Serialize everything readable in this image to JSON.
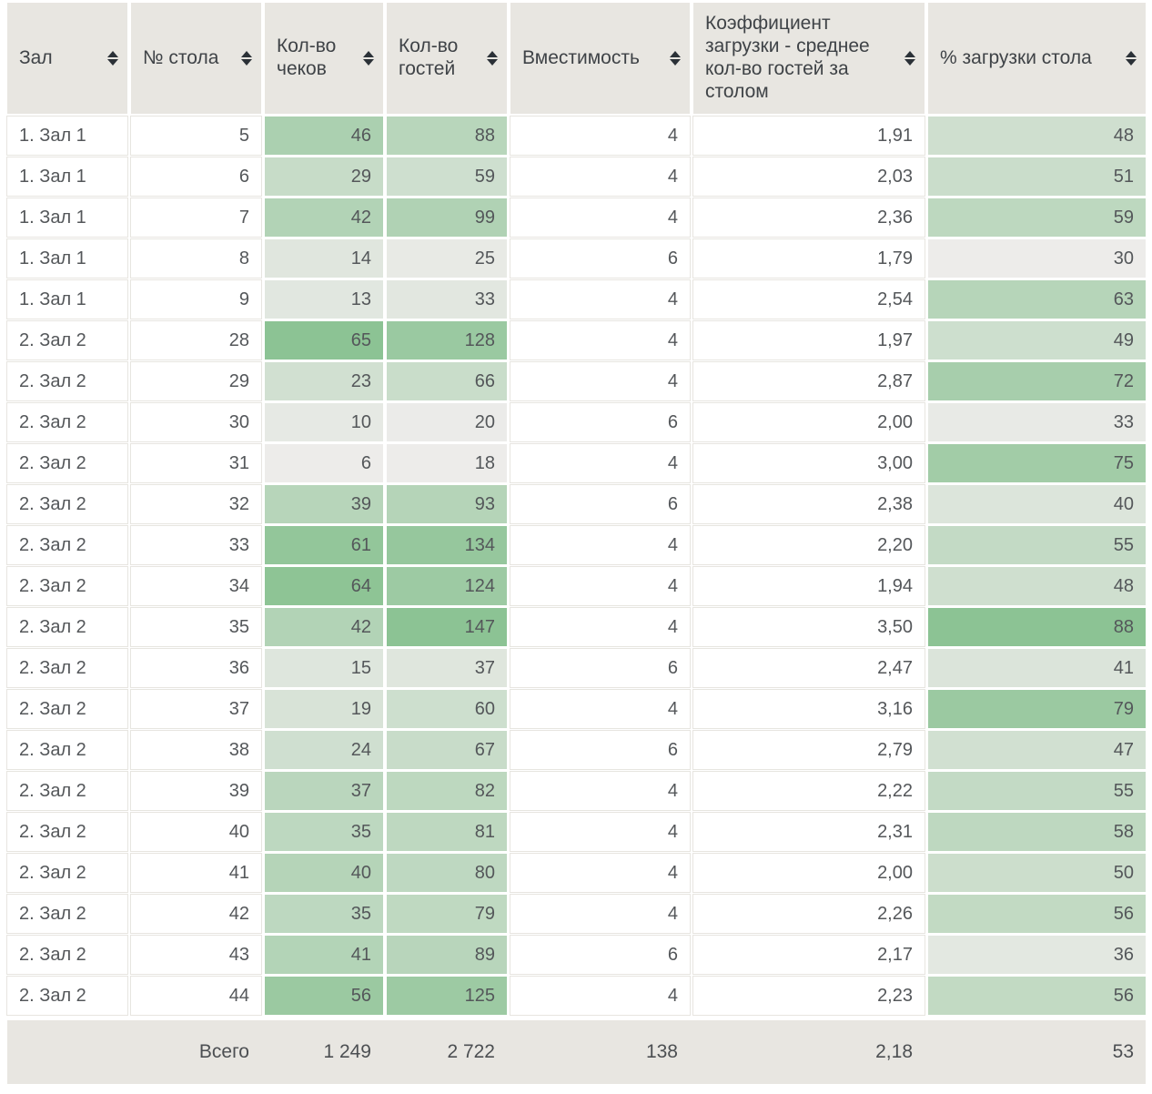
{
  "table": {
    "heatmap": {
      "low": "#edecea",
      "high": "#8cc394"
    },
    "columns": [
      {
        "label": "Зал",
        "align": "left",
        "heatmap": false
      },
      {
        "label": "№ стола",
        "align": "right",
        "heatmap": false
      },
      {
        "label": "Кол-во чеков",
        "align": "right",
        "heatmap": true
      },
      {
        "label": "Кол-во гостей",
        "align": "right",
        "heatmap": true
      },
      {
        "label": "Вместимость",
        "align": "right",
        "heatmap": false
      },
      {
        "label": "Коэффициент загрузки - среднее кол-во гостей за столом",
        "align": "right",
        "heatmap": false
      },
      {
        "label": "% загрузки стола",
        "align": "right",
        "heatmap": true
      }
    ],
    "rows": [
      [
        "1. Зал 1",
        "5",
        "46",
        "88",
        "4",
        "1,91",
        "48"
      ],
      [
        "1. Зал 1",
        "6",
        "29",
        "59",
        "4",
        "2,03",
        "51"
      ],
      [
        "1. Зал 1",
        "7",
        "42",
        "99",
        "4",
        "2,36",
        "59"
      ],
      [
        "1. Зал 1",
        "8",
        "14",
        "25",
        "6",
        "1,79",
        "30"
      ],
      [
        "1. Зал 1",
        "9",
        "13",
        "33",
        "4",
        "2,54",
        "63"
      ],
      [
        "2. Зал 2",
        "28",
        "65",
        "128",
        "4",
        "1,97",
        "49"
      ],
      [
        "2. Зал 2",
        "29",
        "23",
        "66",
        "4",
        "2,87",
        "72"
      ],
      [
        "2. Зал 2",
        "30",
        "10",
        "20",
        "6",
        "2,00",
        "33"
      ],
      [
        "2. Зал 2",
        "31",
        "6",
        "18",
        "4",
        "3,00",
        "75"
      ],
      [
        "2. Зал 2",
        "32",
        "39",
        "93",
        "6",
        "2,38",
        "40"
      ],
      [
        "2. Зал 2",
        "33",
        "61",
        "134",
        "4",
        "2,20",
        "55"
      ],
      [
        "2. Зал 2",
        "34",
        "64",
        "124",
        "4",
        "1,94",
        "48"
      ],
      [
        "2. Зал 2",
        "35",
        "42",
        "147",
        "4",
        "3,50",
        "88"
      ],
      [
        "2. Зал 2",
        "36",
        "15",
        "37",
        "6",
        "2,47",
        "41"
      ],
      [
        "2. Зал 2",
        "37",
        "19",
        "60",
        "4",
        "3,16",
        "79"
      ],
      [
        "2. Зал 2",
        "38",
        "24",
        "67",
        "6",
        "2,79",
        "47"
      ],
      [
        "2. Зал 2",
        "39",
        "37",
        "82",
        "4",
        "2,22",
        "55"
      ],
      [
        "2. Зал 2",
        "40",
        "35",
        "81",
        "4",
        "2,31",
        "58"
      ],
      [
        "2. Зал 2",
        "41",
        "40",
        "80",
        "4",
        "2,00",
        "50"
      ],
      [
        "2. Зал 2",
        "42",
        "35",
        "79",
        "4",
        "2,26",
        "56"
      ],
      [
        "2. Зал 2",
        "43",
        "41",
        "89",
        "6",
        "2,17",
        "36"
      ],
      [
        "2. Зал 2",
        "44",
        "56",
        "125",
        "4",
        "2,23",
        "56"
      ]
    ],
    "totals": {
      "label": "Всего",
      "checks": "1 249",
      "guests": "2 722",
      "capacity": "138",
      "load_factor": "2,18",
      "load_percent": "53"
    }
  }
}
